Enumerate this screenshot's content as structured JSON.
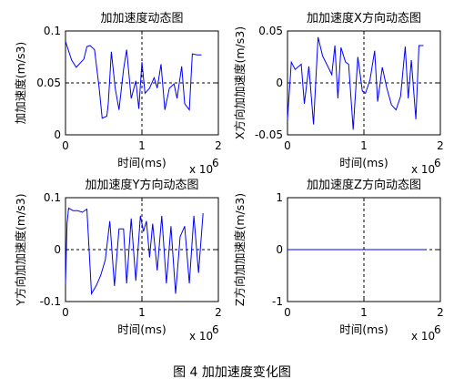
{
  "figure_caption": "图 4  加加速度变化图",
  "chart_data": [
    {
      "type": "line",
      "title": "加加速度动态图",
      "xlabel": "时间(ms)",
      "ylabel": "加加速度(m/s3)",
      "x_multiplier": "x 10",
      "x_multiplier_exp": "6",
      "xlim": [
        0,
        2
      ],
      "ylim": [
        0,
        0.1
      ],
      "xticks": [
        "0",
        "1",
        "2"
      ],
      "yticks": [
        "0",
        "0.05",
        "0.1"
      ],
      "crosshair": [
        1,
        0.05
      ],
      "color": "#0000ff",
      "series": [
        {
          "x": [
            0,
            0.08,
            0.14,
            0.24,
            0.28,
            0.32,
            0.38,
            0.44,
            0.48,
            0.54,
            0.56,
            0.6,
            0.65,
            0.7,
            0.76,
            0.8,
            0.86,
            0.92,
            0.96,
            1.0,
            1.04,
            1.1,
            1.16,
            1.2,
            1.25,
            1.3,
            1.36,
            1.42,
            1.46,
            1.52,
            1.56,
            1.62,
            1.66,
            1.72,
            1.78
          ],
          "y": [
            0.09,
            0.072,
            0.065,
            0.073,
            0.085,
            0.086,
            0.082,
            0.045,
            0.016,
            0.018,
            0.03,
            0.08,
            0.045,
            0.024,
            0.063,
            0.082,
            0.035,
            0.052,
            0.025,
            0.07,
            0.04,
            0.045,
            0.055,
            0.045,
            0.068,
            0.024,
            0.045,
            0.049,
            0.035,
            0.066,
            0.03,
            0.024,
            0.078,
            0.077,
            0.077
          ]
        }
      ]
    },
    {
      "type": "line",
      "title": "加加速度X方向动态图",
      "xlabel": "时间(ms)",
      "ylabel": "X方向加加速度(m/s3)",
      "x_multiplier": "x 10",
      "x_multiplier_exp": "6",
      "xlim": [
        0,
        2
      ],
      "ylim": [
        -0.05,
        0.05
      ],
      "xticks": [
        "0",
        "1",
        "2"
      ],
      "yticks": [
        "-0.05",
        "0",
        "0.05"
      ],
      "crosshair": [
        1,
        0
      ],
      "color": "#0000ff",
      "series": [
        {
          "x": [
            0,
            0.05,
            0.1,
            0.18,
            0.22,
            0.28,
            0.34,
            0.4,
            0.46,
            0.52,
            0.58,
            0.62,
            0.66,
            0.7,
            0.76,
            0.8,
            0.86,
            0.92,
            0.98,
            1.02,
            1.08,
            1.14,
            1.18,
            1.24,
            1.3,
            1.36,
            1.42,
            1.48,
            1.54,
            1.58,
            1.62,
            1.68,
            1.72,
            1.78
          ],
          "y": [
            -0.035,
            0.02,
            0.013,
            0.018,
            -0.02,
            0.016,
            -0.04,
            0.044,
            0.026,
            0.017,
            0.008,
            0.036,
            -0.015,
            0.034,
            0.02,
            0.018,
            -0.045,
            0.025,
            -0.008,
            -0.01,
            0.003,
            0.031,
            -0.018,
            0.015,
            -0.005,
            -0.021,
            -0.026,
            -0.013,
            0.035,
            -0.015,
            0.022,
            -0.035,
            0.036,
            0.036
          ]
        }
      ]
    },
    {
      "type": "line",
      "title": "加加速度Y方向动态图",
      "xlabel": "时间(ms)",
      "ylabel": "Y方向加加速度(m/s3)",
      "x_multiplier": "x 10",
      "x_multiplier_exp": "6",
      "xlim": [
        0,
        2
      ],
      "ylim": [
        -0.1,
        0.1
      ],
      "xticks": [
        "0",
        "1",
        "2"
      ],
      "yticks": [
        "-0.1",
        "0",
        "0.1"
      ],
      "crosshair": [
        1,
        0
      ],
      "color": "#0000ff",
      "series": [
        {
          "x": [
            0,
            0.02,
            0.04,
            0.1,
            0.16,
            0.22,
            0.28,
            0.34,
            0.4,
            0.46,
            0.52,
            0.58,
            0.64,
            0.7,
            0.76,
            0.8,
            0.86,
            0.92,
            0.98,
            1.02,
            1.06,
            1.1,
            1.14,
            1.2,
            1.26,
            1.32,
            1.38,
            1.44,
            1.5,
            1.56,
            1.62,
            1.68,
            1.74,
            1.8
          ],
          "y": [
            -0.065,
            0.05,
            0.08,
            0.075,
            0.075,
            0.072,
            0.078,
            -0.085,
            -0.07,
            -0.05,
            -0.02,
            0.055,
            -0.07,
            0.04,
            0.04,
            -0.065,
            0.06,
            -0.06,
            0.065,
            0.035,
            0.055,
            -0.015,
            0.05,
            -0.04,
            0.065,
            -0.065,
            0.045,
            -0.085,
            0.025,
            0.045,
            -0.065,
            0.065,
            -0.045,
            0.07
          ]
        }
      ]
    },
    {
      "type": "line",
      "title": "加加速度Z方向动态图",
      "xlabel": "时间(ms)",
      "ylabel": "Z方向加加速度(m/s3)",
      "x_multiplier": "x 10",
      "x_multiplier_exp": "6",
      "xlim": [
        0,
        2
      ],
      "ylim": [
        -1,
        1
      ],
      "xticks": [
        "0",
        "1",
        "2"
      ],
      "yticks": [
        "-1",
        "0",
        "1"
      ],
      "crosshair": [
        1,
        0
      ],
      "color": "#0000ff",
      "series": [
        {
          "x": [
            0,
            1.8
          ],
          "y": [
            0,
            0
          ]
        }
      ]
    }
  ]
}
